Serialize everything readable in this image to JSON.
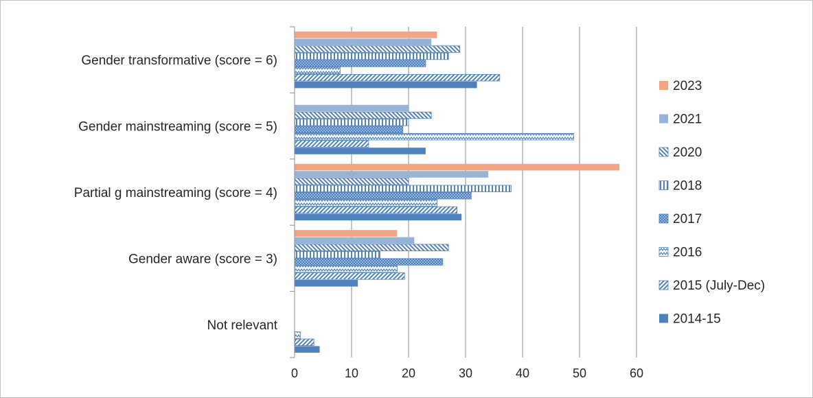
{
  "chart_data": {
    "type": "bar",
    "orientation": "horizontal",
    "categories": [
      "Gender transformative (score = 6)",
      "Gender mainstreaming (score = 5)",
      "Partial g mainstreaming (score = 4)",
      "Gender aware (score = 3)",
      "Not relevant"
    ],
    "series": [
      {
        "name": "2023",
        "values": [
          25,
          null,
          57,
          18,
          null
        ],
        "color": "#f2a585",
        "pattern": "solid"
      },
      {
        "name": "2021",
        "values": [
          24,
          20,
          34,
          21,
          null
        ],
        "color": "#95b3d7",
        "pattern": "solid"
      },
      {
        "name": "2020",
        "values": [
          29,
          24,
          20,
          27,
          null
        ],
        "color": "#4f81bd",
        "pattern": "diag-down"
      },
      {
        "name": "2018",
        "values": [
          27,
          20,
          38,
          15,
          null
        ],
        "color": "#4f81bd",
        "pattern": "vertical"
      },
      {
        "name": "2017",
        "values": [
          23,
          19,
          31,
          26,
          null
        ],
        "color": "#4f81bd",
        "pattern": "dots"
      },
      {
        "name": "2016",
        "values": [
          8,
          49,
          25,
          18,
          1
        ],
        "color": "#4f81bd",
        "pattern": "zigzag"
      },
      {
        "name": "2015 (July-Dec)",
        "values": [
          36,
          13,
          28.5,
          19.3,
          3.4
        ],
        "color": "#4f81bd",
        "pattern": "diag-up"
      },
      {
        "name": "2014-15",
        "values": [
          32,
          23,
          29.3,
          11.1,
          4.4
        ],
        "color": "#4f81bd",
        "pattern": "solid"
      }
    ],
    "xlim": [
      0,
      60
    ],
    "x_ticks": [
      "0",
      "10",
      "20",
      "30",
      "40",
      "50",
      "60"
    ],
    "grid": "vertical",
    "legend_position": "right"
  }
}
